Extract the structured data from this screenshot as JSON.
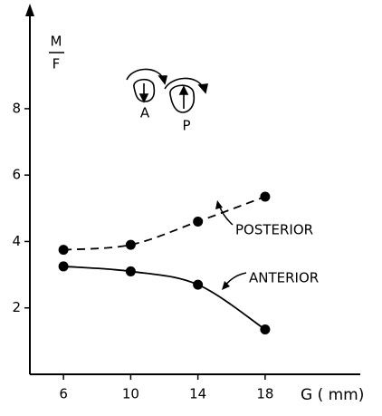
{
  "chart_data": {
    "type": "line",
    "ylabel": [
      "M",
      "F"
    ],
    "xlabel": "G ( mm)",
    "x": [
      6,
      10,
      14,
      18
    ],
    "series": [
      {
        "name": "POSTERIOR",
        "color": "#000000",
        "dashed": true,
        "values": [
          3.75,
          3.9,
          4.6,
          5.35
        ]
      },
      {
        "name": "ANTERIOR",
        "color": "#000000",
        "dashed": false,
        "values": [
          3.25,
          3.1,
          2.7,
          1.35
        ]
      }
    ],
    "icon_labels": [
      "A",
      "P"
    ],
    "xlim": [
      4,
      23.5
    ],
    "ylim": [
      0,
      11
    ],
    "xticks": [
      6,
      10,
      14,
      18
    ],
    "yticks": [
      2,
      4,
      6,
      8
    ],
    "grid": false
  }
}
